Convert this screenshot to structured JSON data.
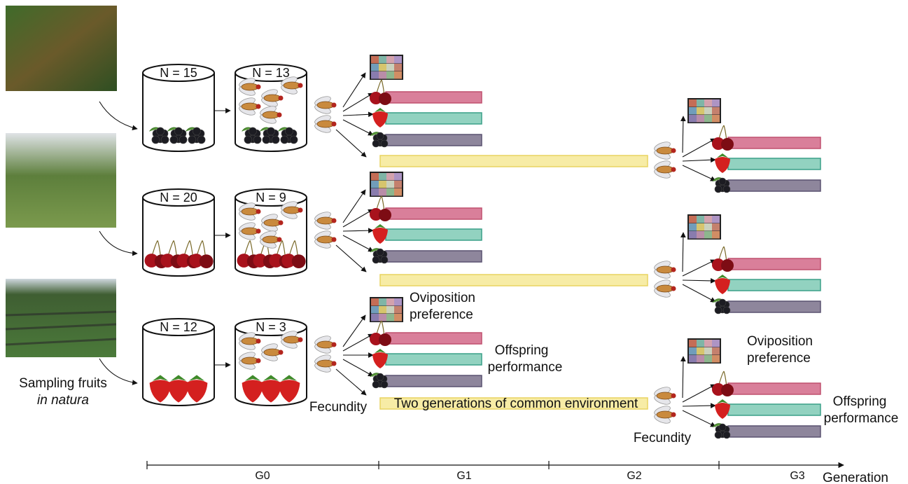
{
  "sampling": {
    "line1": "Sampling fruits",
    "line2": "in natura"
  },
  "rows": [
    {
      "cages": [
        "N = 15",
        "N = 13"
      ]
    },
    {
      "cages": [
        "N = 20",
        "N = 9"
      ]
    },
    {
      "cages": [
        "N = 12",
        "N = 3"
      ]
    }
  ],
  "labels": {
    "oviposition_preference": [
      "Oviposition",
      "preference"
    ],
    "offspring_performance": [
      "Offspring",
      "performance"
    ],
    "fecundity": "Fecundity",
    "common_environment": "Two generations of common environment"
  },
  "timeline": {
    "generations": [
      "G0",
      "G1",
      "G2",
      "G3"
    ],
    "axis_label": "Generation"
  }
}
